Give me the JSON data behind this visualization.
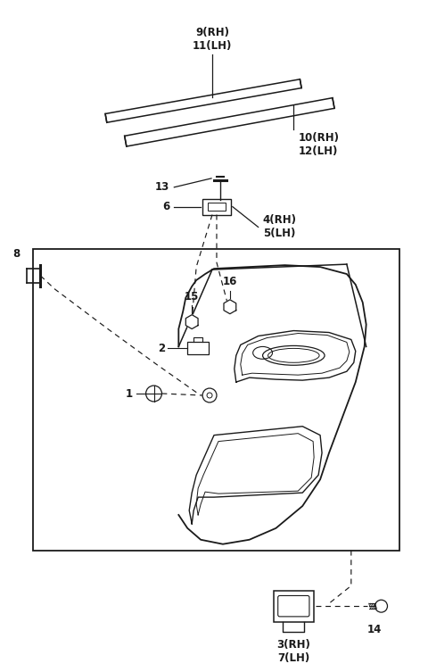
{
  "bg_color": "#ffffff",
  "line_color": "#1a1a1a",
  "figsize": [
    4.8,
    7.53
  ],
  "dpi": 100,
  "strip1_label": "9(RH)\n11(LH)",
  "strip2_label": "10(RH)\n12(LH)",
  "label_13": "13",
  "label_6": "6",
  "label_45": "4(RH)\n5(LH)",
  "label_8": "8",
  "label_15": "15",
  "label_16": "16",
  "label_2": "2",
  "label_1": "1",
  "label_3": "3(RH)\n7(LH)",
  "label_14": "14"
}
